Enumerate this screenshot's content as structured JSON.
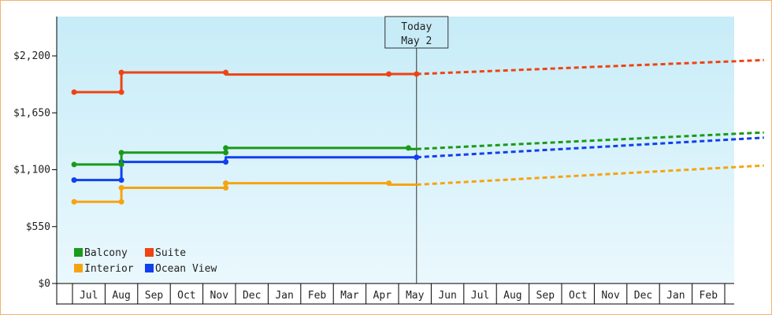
{
  "chart_data": {
    "type": "line",
    "title": "",
    "xlabel": "",
    "ylabel": "",
    "ylim": [
      0,
      2750
    ],
    "y_ticks": [
      {
        "value": 0,
        "label": "$0"
      },
      {
        "value": 550,
        "label": "$550"
      },
      {
        "value": 1100,
        "label": "$1,100"
      },
      {
        "value": 1650,
        "label": "$1,650"
      },
      {
        "value": 2200,
        "label": "$2,200"
      }
    ],
    "months": [
      "Jul",
      "Aug",
      "Sep",
      "Oct",
      "Nov",
      "Dec",
      "Jan",
      "Feb",
      "Mar",
      "Apr",
      "May",
      "Jun",
      "Jul",
      "Aug",
      "Sep",
      "Oct",
      "Nov",
      "Dec",
      "Jan",
      "Feb"
    ],
    "today": {
      "line1": "Today",
      "line2": "May 2",
      "x": 10.05
    },
    "x_start": -0.45,
    "x_end": 20.7,
    "grid": false,
    "legend_position": "bottom-left",
    "background_gradient": [
      "#c7ecf8",
      "#eaf8fd"
    ],
    "series": [
      {
        "name": "Balcony",
        "color": "#1a9a1a",
        "points": [
          [
            -0.45,
            1150
          ],
          [
            1.0,
            1150
          ],
          [
            1.0,
            1265
          ],
          [
            4.2,
            1265
          ],
          [
            4.2,
            1310
          ],
          [
            9.8,
            1310
          ],
          [
            9.8,
            1300
          ],
          [
            10.05,
            1300
          ]
        ],
        "markers": [
          [
            -0.45,
            1150
          ],
          [
            1.0,
            1150
          ],
          [
            1.0,
            1265
          ],
          [
            4.2,
            1265
          ],
          [
            4.2,
            1310
          ],
          [
            9.8,
            1310
          ]
        ],
        "forecast": [
          [
            10.05,
            1300
          ],
          [
            20.7,
            1460
          ]
        ]
      },
      {
        "name": "Suite",
        "color": "#ee4411",
        "points": [
          [
            -0.45,
            1850
          ],
          [
            1.0,
            1850
          ],
          [
            1.0,
            2040
          ],
          [
            4.2,
            2040
          ],
          [
            4.2,
            2020
          ],
          [
            9.2,
            2020
          ],
          [
            9.2,
            2025
          ],
          [
            10.05,
            2025
          ]
        ],
        "markers": [
          [
            -0.45,
            1850
          ],
          [
            1.0,
            1850
          ],
          [
            1.0,
            2040
          ],
          [
            4.2,
            2040
          ],
          [
            9.2,
            2025
          ],
          [
            10.05,
            2025
          ]
        ],
        "forecast": [
          [
            10.05,
            2025
          ],
          [
            20.7,
            2160
          ]
        ]
      },
      {
        "name": "Interior",
        "color": "#f5a411",
        "points": [
          [
            -0.45,
            790
          ],
          [
            1.0,
            790
          ],
          [
            1.0,
            925
          ],
          [
            4.2,
            925
          ],
          [
            4.2,
            970
          ],
          [
            9.2,
            970
          ],
          [
            9.2,
            955
          ],
          [
            10.05,
            955
          ]
        ],
        "markers": [
          [
            -0.45,
            790
          ],
          [
            1.0,
            790
          ],
          [
            1.0,
            925
          ],
          [
            4.2,
            925
          ],
          [
            4.2,
            970
          ],
          [
            9.2,
            970
          ]
        ],
        "forecast": [
          [
            10.05,
            955
          ],
          [
            20.7,
            1140
          ]
        ]
      },
      {
        "name": "Ocean View",
        "color": "#1140ee",
        "points": [
          [
            -0.45,
            1000
          ],
          [
            1.0,
            1000
          ],
          [
            1.0,
            1175
          ],
          [
            4.2,
            1175
          ],
          [
            4.2,
            1220
          ],
          [
            10.05,
            1220
          ]
        ],
        "markers": [
          [
            -0.45,
            1000
          ],
          [
            1.0,
            1000
          ],
          [
            1.0,
            1175
          ],
          [
            4.2,
            1175
          ],
          [
            10.05,
            1220
          ]
        ],
        "forecast": [
          [
            10.05,
            1220
          ],
          [
            20.7,
            1410
          ]
        ]
      }
    ],
    "legend_layout": [
      [
        "Balcony",
        "Suite"
      ],
      [
        "Interior",
        "Ocean View"
      ]
    ]
  }
}
